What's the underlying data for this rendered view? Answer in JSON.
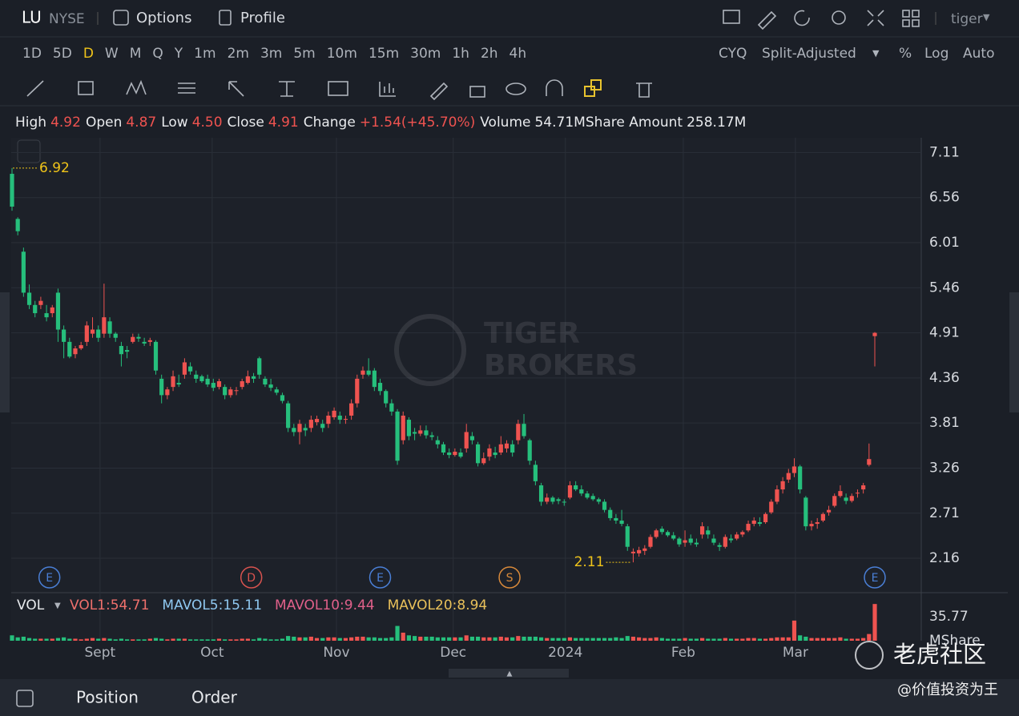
{
  "header": {
    "symbol": "LU",
    "exchange": "NYSE",
    "tabs": [
      "Options",
      "Profile"
    ],
    "user": "tiger"
  },
  "periods": {
    "items": [
      "1D",
      "5D",
      "D",
      "W",
      "M",
      "Q",
      "Y",
      "1m",
      "2m",
      "3m",
      "5m",
      "10m",
      "15m",
      "30m",
      "1h",
      "2h",
      "4h"
    ],
    "selected": "D"
  },
  "options": [
    "CYQ",
    "Split-Adjusted",
    "%",
    "Log",
    "Auto"
  ],
  "quote": [
    {
      "label": "High",
      "value": "4.92"
    },
    {
      "label": "Open",
      "value": "4.87"
    },
    {
      "label": "Low",
      "value": "4.50"
    },
    {
      "label": "Close",
      "value": "4.91"
    },
    {
      "label": "Change",
      "value": "+1.54(+45.70%)"
    },
    {
      "label": "Volume",
      "value": "54.71M"
    },
    {
      "label": "Share Amount",
      "value": "258.17M"
    }
  ],
  "brand": [
    "TIGER",
    "BROKERS"
  ],
  "chart_data": {
    "type": "candlestick",
    "grid": true,
    "up_color": "#ef5350",
    "down_color": "#26bf7c",
    "ylim": [
      1.76,
      7.29
    ],
    "yticks": [
      7.11,
      6.56,
      6.01,
      5.46,
      4.91,
      4.36,
      3.81,
      3.26,
      2.71,
      2.16
    ],
    "xlim": [
      -0.1,
      157.3
    ],
    "xticks": [
      {
        "value": 15.3,
        "label": "Sept"
      },
      {
        "value": 34.8,
        "label": "Oct"
      },
      {
        "value": 56.4,
        "label": "Nov"
      },
      {
        "value": 76.7,
        "label": "Dec"
      },
      {
        "value": 96.2,
        "label": "2024"
      },
      {
        "value": 116.7,
        "label": "Feb"
      },
      {
        "value": 136.2,
        "label": "Mar"
      }
    ],
    "high_marker": 6.92,
    "low_marker": 2.11,
    "events": [
      {
        "label": "E",
        "index": 6.5,
        "color": "#4a7fd6"
      },
      {
        "label": "D",
        "index": 41.6,
        "color": "#d9534f"
      },
      {
        "label": "E",
        "index": 64,
        "color": "#4a7fd6"
      },
      {
        "label": "S",
        "index": 86.5,
        "color": "#d98a3a"
      },
      {
        "label": "E",
        "index": 150,
        "color": "#4a7fd6"
      }
    ],
    "candles": [
      [
        6.85,
        6.92,
        6.4,
        6.45
      ],
      [
        6.3,
        6.32,
        6.1,
        6.15
      ],
      [
        5.9,
        5.95,
        5.35,
        5.4
      ],
      [
        5.4,
        5.5,
        5.2,
        5.25
      ],
      [
        5.25,
        5.3,
        5.1,
        5.15
      ],
      [
        5.25,
        5.35,
        5.2,
        5.3
      ],
      [
        5.15,
        5.25,
        5.05,
        5.1
      ],
      [
        5.15,
        5.25,
        5.1,
        5.22
      ],
      [
        5.4,
        5.45,
        4.8,
        4.95
      ],
      [
        4.95,
        5.0,
        4.6,
        4.8
      ],
      [
        4.8,
        4.85,
        4.6,
        4.62
      ],
      [
        4.65,
        4.75,
        4.6,
        4.72
      ],
      [
        4.72,
        4.8,
        4.7,
        4.76
      ],
      [
        4.8,
        5.05,
        4.75,
        5.0
      ],
      [
        4.9,
        5.1,
        4.85,
        4.95
      ],
      [
        4.95,
        5.0,
        4.8,
        4.85
      ],
      [
        4.9,
        5.51,
        4.85,
        5.1
      ],
      [
        5.05,
        5.1,
        4.85,
        4.9
      ],
      [
        4.9,
        4.92,
        4.8,
        4.85
      ],
      [
        4.75,
        4.8,
        4.5,
        4.65
      ],
      [
        4.7,
        4.75,
        4.6,
        4.68
      ],
      [
        4.8,
        4.9,
        4.78,
        4.86
      ],
      [
        4.86,
        4.9,
        4.8,
        4.84
      ],
      [
        4.8,
        4.85,
        4.75,
        4.78
      ],
      [
        4.8,
        4.85,
        4.75,
        4.82
      ],
      [
        4.8,
        4.82,
        4.4,
        4.45
      ],
      [
        4.35,
        4.4,
        4.05,
        4.15
      ],
      [
        4.15,
        4.25,
        4.1,
        4.22
      ],
      [
        4.25,
        4.45,
        4.2,
        4.38
      ],
      [
        4.3,
        4.4,
        4.25,
        4.28
      ],
      [
        4.4,
        4.6,
        4.35,
        4.55
      ],
      [
        4.5,
        4.55,
        4.4,
        4.44
      ],
      [
        4.4,
        4.45,
        4.3,
        4.35
      ],
      [
        4.38,
        4.4,
        4.3,
        4.32
      ],
      [
        4.35,
        4.4,
        4.25,
        4.28
      ],
      [
        4.3,
        4.35,
        4.2,
        4.24
      ],
      [
        4.25,
        4.35,
        4.22,
        4.32
      ],
      [
        4.25,
        4.28,
        4.1,
        4.15
      ],
      [
        4.15,
        4.25,
        4.12,
        4.22
      ],
      [
        4.2,
        4.25,
        4.15,
        4.21
      ],
      [
        4.25,
        4.35,
        4.22,
        4.32
      ],
      [
        4.3,
        4.45,
        4.28,
        4.38
      ],
      [
        4.38,
        4.42,
        4.3,
        4.35
      ],
      [
        4.6,
        4.62,
        4.35,
        4.4
      ],
      [
        4.35,
        4.38,
        4.25,
        4.28
      ],
      [
        4.28,
        4.35,
        4.2,
        4.24
      ],
      [
        4.22,
        4.25,
        4.15,
        4.18
      ],
      [
        4.15,
        4.18,
        4.05,
        4.08
      ],
      [
        4.05,
        4.08,
        3.7,
        3.75
      ],
      [
        3.75,
        3.8,
        3.65,
        3.7
      ],
      [
        3.7,
        3.85,
        3.55,
        3.8
      ],
      [
        3.75,
        3.8,
        3.65,
        3.72
      ],
      [
        3.75,
        3.9,
        3.7,
        3.85
      ],
      [
        3.82,
        3.9,
        3.78,
        3.86
      ],
      [
        3.8,
        3.85,
        3.7,
        3.75
      ],
      [
        3.8,
        3.95,
        3.75,
        3.9
      ],
      [
        3.88,
        4.0,
        3.85,
        3.96
      ],
      [
        3.9,
        3.95,
        3.8,
        3.85
      ],
      [
        3.85,
        3.9,
        3.8,
        3.86
      ],
      [
        3.9,
        4.1,
        3.85,
        4.05
      ],
      [
        4.05,
        4.4,
        4.0,
        4.35
      ],
      [
        4.4,
        4.5,
        4.35,
        4.45
      ],
      [
        4.45,
        4.6,
        4.38,
        4.4
      ],
      [
        4.45,
        4.48,
        4.2,
        4.25
      ],
      [
        4.3,
        4.35,
        4.15,
        4.2
      ],
      [
        4.2,
        4.22,
        4.0,
        4.05
      ],
      [
        4.05,
        4.1,
        3.9,
        3.95
      ],
      [
        3.95,
        3.98,
        3.3,
        3.35
      ],
      [
        3.6,
        3.95,
        3.55,
        3.9
      ],
      [
        3.85,
        3.88,
        3.6,
        3.65
      ],
      [
        3.7,
        3.75,
        3.6,
        3.68
      ],
      [
        3.68,
        3.78,
        3.65,
        3.72
      ],
      [
        3.72,
        3.78,
        3.62,
        3.66
      ],
      [
        3.66,
        3.7,
        3.6,
        3.64
      ],
      [
        3.6,
        3.65,
        3.5,
        3.55
      ],
      [
        3.55,
        3.58,
        3.42,
        3.45
      ],
      [
        3.45,
        3.5,
        3.38,
        3.42
      ],
      [
        3.42,
        3.5,
        3.4,
        3.46
      ],
      [
        3.45,
        3.5,
        3.38,
        3.4
      ],
      [
        3.5,
        3.8,
        3.45,
        3.7
      ],
      [
        3.65,
        3.7,
        3.55,
        3.6
      ],
      [
        3.55,
        3.58,
        3.28,
        3.32
      ],
      [
        3.32,
        3.45,
        3.3,
        3.38
      ],
      [
        3.4,
        3.55,
        3.35,
        3.5
      ],
      [
        3.45,
        3.52,
        3.38,
        3.42
      ],
      [
        3.45,
        3.65,
        3.42,
        3.55
      ],
      [
        3.5,
        3.6,
        3.45,
        3.56
      ],
      [
        3.55,
        3.6,
        3.4,
        3.45
      ],
      [
        3.6,
        3.85,
        3.55,
        3.8
      ],
      [
        3.8,
        3.92,
        3.62,
        3.65
      ],
      [
        3.6,
        3.62,
        3.3,
        3.35
      ],
      [
        3.3,
        3.35,
        3.05,
        3.1
      ],
      [
        3.05,
        3.08,
        2.8,
        2.85
      ],
      [
        2.85,
        2.95,
        2.82,
        2.9
      ],
      [
        2.9,
        2.92,
        2.82,
        2.85
      ],
      [
        2.88,
        2.9,
        2.82,
        2.86
      ],
      [
        2.85,
        2.88,
        2.8,
        2.84
      ],
      [
        2.9,
        3.1,
        2.88,
        3.05
      ],
      [
        3.05,
        3.1,
        2.98,
        3.0
      ],
      [
        3.0,
        3.05,
        2.92,
        2.95
      ],
      [
        2.95,
        2.98,
        2.88,
        2.9
      ],
      [
        2.92,
        2.95,
        2.86,
        2.88
      ],
      [
        2.88,
        2.9,
        2.82,
        2.85
      ],
      [
        2.85,
        2.88,
        2.72,
        2.75
      ],
      [
        2.75,
        2.78,
        2.62,
        2.65
      ],
      [
        2.65,
        2.7,
        2.58,
        2.62
      ],
      [
        2.62,
        2.75,
        2.55,
        2.58
      ],
      [
        2.55,
        2.58,
        2.25,
        2.3
      ],
      [
        2.22,
        2.28,
        2.11,
        2.24
      ],
      [
        2.22,
        2.3,
        2.18,
        2.26
      ],
      [
        2.25,
        2.32,
        2.2,
        2.28
      ],
      [
        2.3,
        2.45,
        2.28,
        2.42
      ],
      [
        2.42,
        2.52,
        2.4,
        2.5
      ],
      [
        2.52,
        2.55,
        2.45,
        2.48
      ],
      [
        2.48,
        2.5,
        2.42,
        2.44
      ],
      [
        2.44,
        2.48,
        2.38,
        2.4
      ],
      [
        2.4,
        2.42,
        2.3,
        2.33
      ],
      [
        2.35,
        2.5,
        2.3,
        2.38
      ],
      [
        2.4,
        2.45,
        2.32,
        2.35
      ],
      [
        2.35,
        2.4,
        2.3,
        2.33
      ],
      [
        2.45,
        2.6,
        2.4,
        2.55
      ],
      [
        2.5,
        2.55,
        2.4,
        2.45
      ],
      [
        2.4,
        2.45,
        2.32,
        2.35
      ],
      [
        2.32,
        2.35,
        2.25,
        2.3
      ],
      [
        2.3,
        2.45,
        2.28,
        2.42
      ],
      [
        2.4,
        2.45,
        2.35,
        2.38
      ],
      [
        2.4,
        2.48,
        2.38,
        2.45
      ],
      [
        2.45,
        2.5,
        2.42,
        2.48
      ],
      [
        2.5,
        2.62,
        2.48,
        2.58
      ],
      [
        2.58,
        2.66,
        2.55,
        2.62
      ],
      [
        2.6,
        2.66,
        2.55,
        2.58
      ],
      [
        2.6,
        2.72,
        2.58,
        2.7
      ],
      [
        2.72,
        2.88,
        2.7,
        2.85
      ],
      [
        2.85,
        3.05,
        2.82,
        3.0
      ],
      [
        3.0,
        3.15,
        2.95,
        3.1
      ],
      [
        3.12,
        3.25,
        3.08,
        3.2
      ],
      [
        3.2,
        3.38,
        3.15,
        3.28
      ],
      [
        3.28,
        3.3,
        2.95,
        3.0
      ],
      [
        2.9,
        2.92,
        2.5,
        2.55
      ],
      [
        2.55,
        2.62,
        2.5,
        2.58
      ],
      [
        2.58,
        2.65,
        2.52,
        2.6
      ],
      [
        2.62,
        2.72,
        2.6,
        2.7
      ],
      [
        2.72,
        2.8,
        2.68,
        2.75
      ],
      [
        2.8,
        2.95,
        2.78,
        2.92
      ],
      [
        2.92,
        3.05,
        2.9,
        2.98
      ],
      [
        2.9,
        2.95,
        2.82,
        2.86
      ],
      [
        2.86,
        2.95,
        2.84,
        2.92
      ],
      [
        2.95,
        3.0,
        2.9,
        2.96
      ],
      [
        3.0,
        3.08,
        2.95,
        3.05
      ],
      [
        3.3,
        3.56,
        3.28,
        3.37
      ],
      [
        4.87,
        4.92,
        4.5,
        4.91
      ]
    ],
    "volumes": [
      8,
      5,
      6,
      4,
      3,
      3,
      3,
      3,
      4,
      5,
      3,
      3,
      2,
      3,
      4,
      3,
      4,
      3,
      2,
      3,
      2,
      2,
      2,
      2,
      3,
      4,
      3,
      2,
      3,
      3,
      3,
      2,
      2,
      2,
      2,
      2,
      3,
      2,
      2,
      2,
      3,
      3,
      2,
      4,
      3,
      2,
      2,
      3,
      7,
      6,
      5,
      5,
      6,
      4,
      4,
      5,
      5,
      4,
      4,
      5,
      6,
      6,
      5,
      5,
      4,
      4,
      5,
      22,
      12,
      8,
      7,
      6,
      6,
      6,
      5,
      5,
      5,
      5,
      5,
      8,
      6,
      6,
      5,
      5,
      5,
      6,
      5,
      5,
      7,
      6,
      6,
      6,
      5,
      4,
      4,
      4,
      4,
      5,
      4,
      4,
      4,
      4,
      4,
      4,
      4,
      5,
      4,
      7,
      6,
      5,
      4,
      4,
      5,
      4,
      3,
      3,
      3,
      4,
      3,
      3,
      4,
      3,
      3,
      3,
      4,
      3,
      3,
      3,
      4,
      4,
      3,
      3,
      4,
      5,
      5,
      5,
      30,
      8,
      6,
      4,
      4,
      4,
      4,
      4,
      5,
      3,
      3,
      3,
      4,
      10,
      54.71
    ],
    "vol_ylim": [
      0,
      69.2
    ],
    "vol_yticks": [
      35.77
    ],
    "vol_unit": "MShare"
  },
  "volume_legend": {
    "name": "VOL",
    "items": [
      {
        "label": "VOL1:54.71",
        "color": "#f0706c"
      },
      {
        "label": "MAVOL5:15.11",
        "color": "#8fc8f0"
      },
      {
        "label": "MAVOL10:9.44",
        "color": "#e0608a"
      },
      {
        "label": "MAVOL20:8.94",
        "color": "#e8c05a"
      }
    ]
  },
  "bottom_bar": {
    "tabs": [
      "Position",
      "Order"
    ]
  },
  "watermark": {
    "text": "老虎社区",
    "credit": "@价值投资为王"
  }
}
